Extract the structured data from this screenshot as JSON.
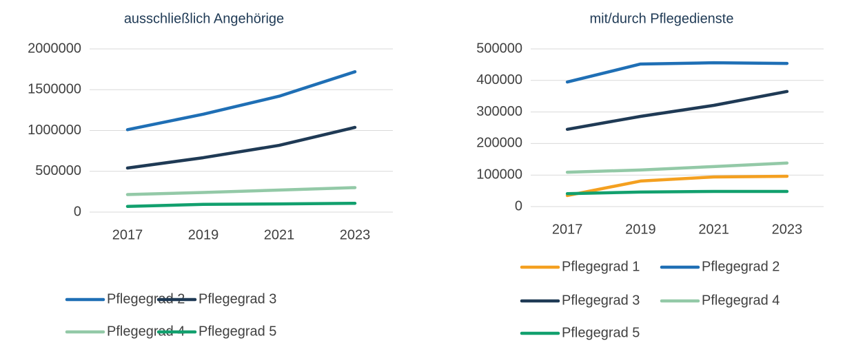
{
  "chart_data": [
    {
      "type": "line",
      "title": "ausschließlich Angehörige",
      "categories": [
        "2017",
        "2019",
        "2021",
        "2023"
      ],
      "series": [
        {
          "name": "Pflegegrad 2",
          "color": "#1f6fb5",
          "values": [
            1010000,
            1200000,
            1420000,
            1720000
          ]
        },
        {
          "name": "Pflegegrad 3",
          "color": "#1f3a55",
          "values": [
            540000,
            667000,
            818000,
            1038000
          ]
        },
        {
          "name": "Pflegegrad 4",
          "color": "#93c9a7",
          "values": [
            215000,
            240000,
            270000,
            300000
          ]
        },
        {
          "name": "Pflegegrad 5",
          "color": "#12a06e",
          "values": [
            70000,
            95000,
            100000,
            108000
          ]
        }
      ],
      "ylim": [
        0,
        2000000
      ],
      "yticks": [
        0,
        500000,
        1000000,
        1500000,
        2000000
      ],
      "grid": true,
      "legend": "bottom"
    },
    {
      "type": "line",
      "title": "mit/durch Pflegedienste",
      "categories": [
        "2017",
        "2019",
        "2021",
        "2023"
      ],
      "series": [
        {
          "name": "Pflegegrad 1",
          "color": "#f4a020",
          "values": [
            35000,
            81000,
            94000,
            96000
          ]
        },
        {
          "name": "Pflegegrad 2",
          "color": "#1f6fb5",
          "values": [
            395000,
            452000,
            456000,
            454000
          ]
        },
        {
          "name": "Pflegegrad 3",
          "color": "#1f3a55",
          "values": [
            245000,
            286000,
            321000,
            365000
          ]
        },
        {
          "name": "Pflegegrad 4",
          "color": "#93c9a7",
          "values": [
            109000,
            116000,
            127000,
            138000
          ]
        },
        {
          "name": "Pflegegrad 5",
          "color": "#12a06e",
          "values": [
            41000,
            46000,
            48000,
            48000
          ]
        }
      ],
      "ylim": [
        0,
        500000
      ],
      "yticks": [
        0,
        100000,
        200000,
        300000,
        400000,
        500000
      ],
      "grid": true,
      "legend": "bottom"
    }
  ]
}
